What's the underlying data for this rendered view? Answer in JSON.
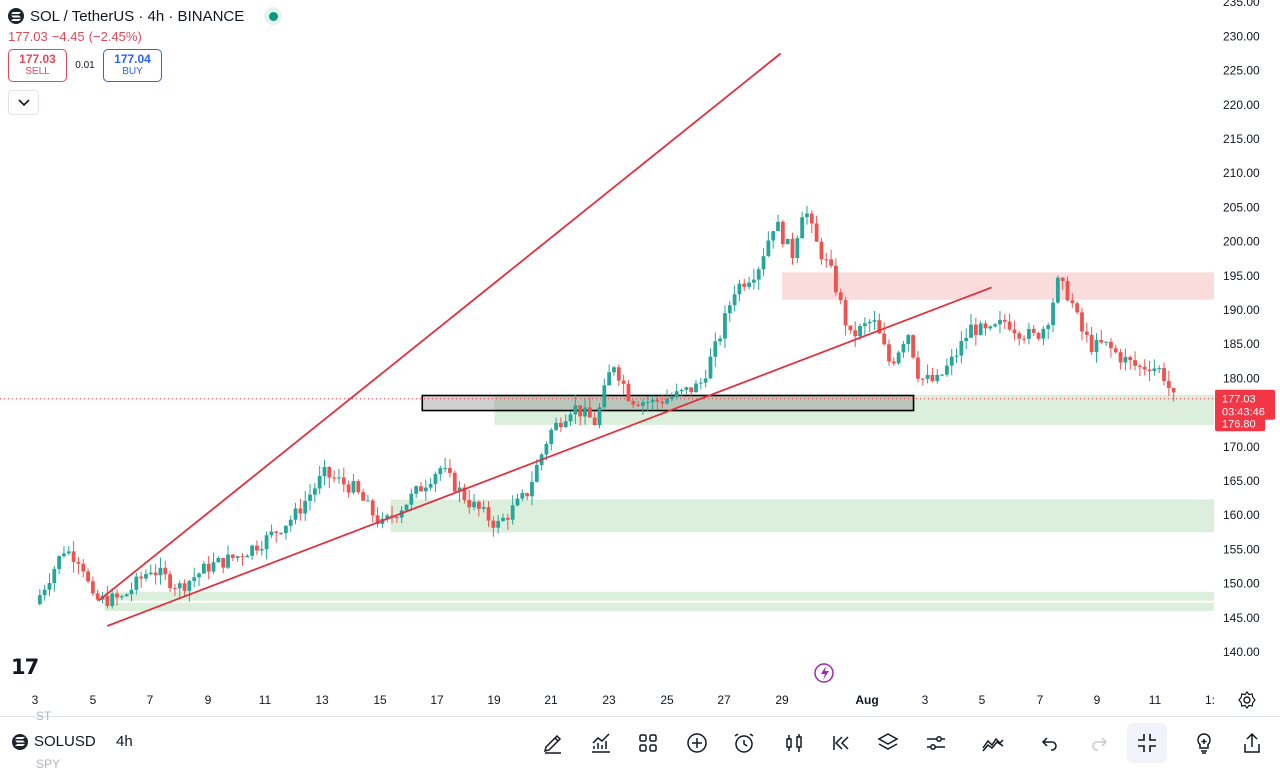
{
  "header": {
    "title": "SOL / TetherUS · 4h · BINANCE",
    "price": "177.03",
    "change": "−4.45",
    "change_pct": "(−2.45%)",
    "sell_price": "177.03",
    "sell_label": "SELL",
    "spread": "0.01",
    "buy_price": "177.04",
    "buy_label": "BUY"
  },
  "colors": {
    "up": "#26a69a",
    "down": "#ef5350",
    "trendline": "#e0303f",
    "support_zone": "#dcefdc",
    "resistance_zone": "#fadcdc",
    "price_label": "#f23645"
  },
  "chart_data": {
    "type": "candlestick",
    "symbol": "SOL / TetherUS",
    "interval": "4h",
    "exchange": "BINANCE",
    "price_axis_ticks": [
      "235.00",
      "230.00",
      "225.00",
      "220.00",
      "215.00",
      "210.00",
      "205.00",
      "200.00",
      "195.00",
      "190.00",
      "185.00",
      "180.00",
      "175.00",
      "170.00",
      "165.00",
      "160.00",
      "155.00",
      "150.00",
      "145.00",
      "140.00"
    ],
    "ylim": [
      138.0,
      236.5
    ],
    "time_axis_labels": [
      "3",
      "5",
      "7",
      "9",
      "11",
      "13",
      "15",
      "17",
      "19",
      "21",
      "23",
      "25",
      "27",
      "29",
      "Aug",
      "3",
      "5",
      "7",
      "9",
      "11",
      "1:"
    ],
    "last_price": "177.03",
    "countdown": "03:43:46",
    "prev_label": "176.80",
    "key_closes": [
      {
        "d": 0.0,
        "c": 147.0
      },
      {
        "d": 1.0,
        "c": 155.0
      },
      {
        "d": 1.6,
        "c": 153.5
      },
      {
        "d": 2.0,
        "c": 147.5
      },
      {
        "d": 3.0,
        "c": 147.8
      },
      {
        "d": 4.0,
        "c": 152.2
      },
      {
        "d": 5.0,
        "c": 149.5
      },
      {
        "d": 6.0,
        "c": 152.5
      },
      {
        "d": 7.0,
        "c": 154.0
      },
      {
        "d": 8.0,
        "c": 156.5
      },
      {
        "d": 9.0,
        "c": 160.0
      },
      {
        "d": 10.0,
        "c": 166.0
      },
      {
        "d": 11.0,
        "c": 164.0
      },
      {
        "d": 12.0,
        "c": 158.5
      },
      {
        "d": 13.0,
        "c": 162.5
      },
      {
        "d": 14.0,
        "c": 167.0
      },
      {
        "d": 15.0,
        "c": 162.0
      },
      {
        "d": 16.0,
        "c": 158.5
      },
      {
        "d": 17.0,
        "c": 163.0
      },
      {
        "d": 17.8,
        "c": 172.0
      },
      {
        "d": 18.6,
        "c": 176.0
      },
      {
        "d": 19.4,
        "c": 173.5
      },
      {
        "d": 20.0,
        "c": 182.5
      },
      {
        "d": 20.6,
        "c": 177.0
      },
      {
        "d": 21.4,
        "c": 176.5
      },
      {
        "d": 22.2,
        "c": 177.5
      },
      {
        "d": 23.0,
        "c": 179.0
      },
      {
        "d": 23.6,
        "c": 185.0
      },
      {
        "d": 24.2,
        "c": 193.0
      },
      {
        "d": 25.0,
        "c": 196.0
      },
      {
        "d": 25.6,
        "c": 203.0
      },
      {
        "d": 26.2,
        "c": 198.0
      },
      {
        "d": 26.6,
        "c": 205.5
      },
      {
        "d": 27.0,
        "c": 200.0
      },
      {
        "d": 27.6,
        "c": 195.0
      },
      {
        "d": 28.2,
        "c": 186.0
      },
      {
        "d": 29.0,
        "c": 188.5
      },
      {
        "d": 29.6,
        "c": 182.0
      },
      {
        "d": 30.2,
        "c": 187.0
      },
      {
        "d": 30.6,
        "c": 180.0
      },
      {
        "d": 31.2,
        "c": 179.5
      },
      {
        "d": 31.8,
        "c": 183.0
      },
      {
        "d": 32.4,
        "c": 187.5
      },
      {
        "d": 33.0,
        "c": 186.5
      },
      {
        "d": 33.6,
        "c": 188.5
      },
      {
        "d": 34.0,
        "c": 187.0
      },
      {
        "d": 34.6,
        "c": 186.0
      },
      {
        "d": 35.0,
        "c": 188.0
      },
      {
        "d": 35.4,
        "c": 194.0
      },
      {
        "d": 35.8,
        "c": 192.0
      },
      {
        "d": 36.2,
        "c": 187.0
      },
      {
        "d": 36.6,
        "c": 184.5
      },
      {
        "d": 37.0,
        "c": 185.0
      },
      {
        "d": 37.6,
        "c": 183.0
      },
      {
        "d": 38.2,
        "c": 181.5
      },
      {
        "d": 38.6,
        "c": 182.0
      },
      {
        "d": 39.0,
        "c": 181.0
      },
      {
        "d": 39.4,
        "c": 177.0
      }
    ]
  },
  "bottom_bar": {
    "symbol": "SOLUSD",
    "interval": "4h",
    "ghost_above": "ST",
    "ghost_below": "SPY"
  },
  "icons": {
    "bottom_tools": [
      "pencil-icon",
      "indicators-icon",
      "grid-icon",
      "plus-circle-icon",
      "alarm-icon",
      "candles-icon",
      "replay-icon",
      "layers-icon",
      "settings-sliders-icon",
      "trendline-icon",
      "undo-icon",
      "redo-icon",
      "collapse-icon",
      "lightbulb-icon",
      "share-icon"
    ]
  }
}
